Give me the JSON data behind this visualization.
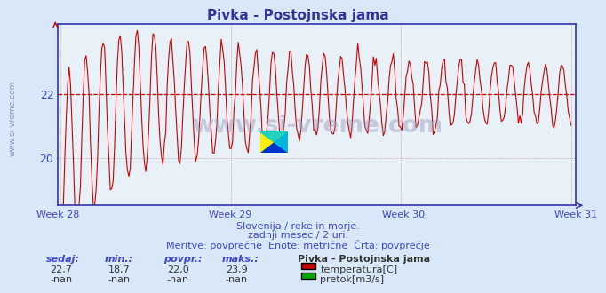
{
  "title": "Pivka - Postojnska jama",
  "background_color": "#d8e8f8",
  "plot_bg_color": "#e8f0f8",
  "line_color": "#cc0000",
  "avg_line_color": "#cc0000",
  "avg_line_value": 22.0,
  "y_min": 18.5,
  "y_max": 24.2,
  "yticks": [
    20,
    22
  ],
  "x_labels": [
    "Week 28",
    "Week 29",
    "Week 30",
    "Week 31"
  ],
  "subtitle1": "Slovenija / reke in morje.",
  "subtitle2": "zadnji mesec / 2 uri.",
  "subtitle3": "Meritve: povprečne  Enote: metrične  Črta: povprečje",
  "legend_title": "Pivka - Postojnska jama",
  "label_sedaj": "sedaj:",
  "label_min": "min.:",
  "label_povpr": "povpr.:",
  "label_maks": "maks.:",
  "val_sedaj": "22,7",
  "val_min": "18,7",
  "val_povpr": "22,0",
  "val_maks": "23,9",
  "val_sedaj2": "-nan",
  "val_min2": "-nan",
  "val_povpr2": "-nan",
  "val_maks2": "-nan",
  "legend_temp": "temperatura[C]",
  "legend_pretok": "pretok[m3/s]",
  "temp_color": "#cc0000",
  "pretok_color": "#00aa00",
  "watermark": "www.si-vreme.com",
  "text_color": "#4444cc",
  "grid_color": "#cc8888",
  "num_points": 360
}
